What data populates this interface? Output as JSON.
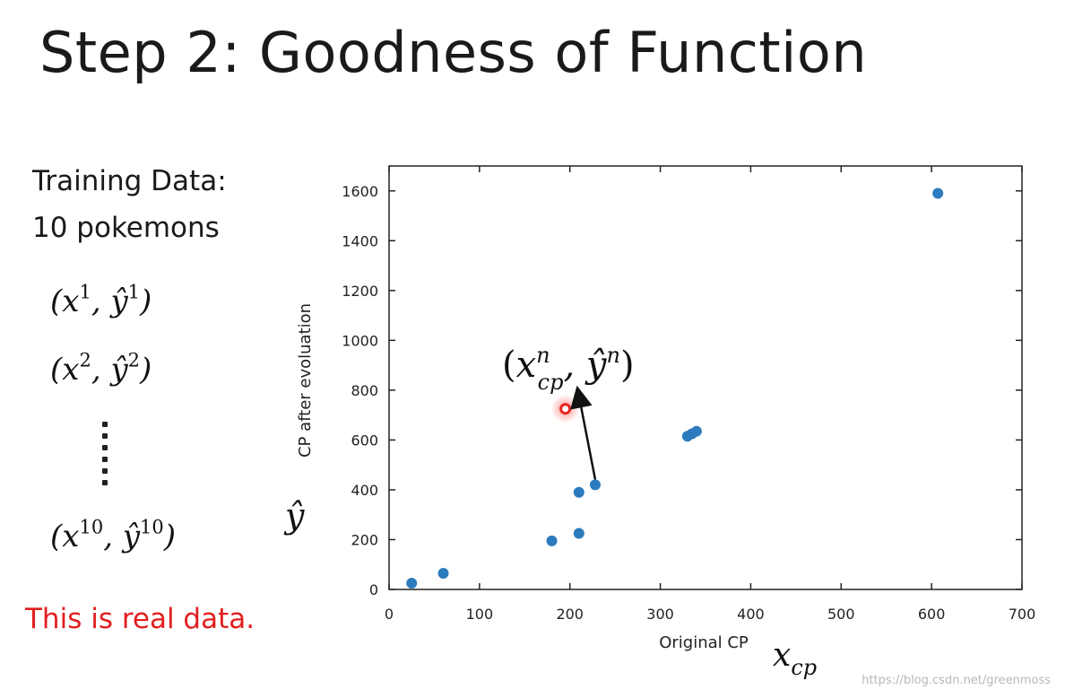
{
  "title": "Step 2: Goodness of Function",
  "training": {
    "line1": "Training Data:",
    "line2": "10 pokemons",
    "pairs": [
      {
        "x": "x",
        "sup": "1",
        "y": "ŷ"
      },
      {
        "x": "x",
        "sup": "2",
        "y": "ŷ"
      },
      {
        "x": "x",
        "sup": "10",
        "y": "ŷ"
      }
    ]
  },
  "note": "This is real data.",
  "watermark": "https://blog.csdn.net/greenmoss",
  "colors": {
    "point": "#2c7bbd",
    "highlight": "#e8231f",
    "note": "#e21f1f"
  },
  "chart_data": {
    "type": "scatter",
    "xlabel": "Original CP",
    "ylabel": "CP after evoluation",
    "xlim": [
      0,
      700
    ],
    "ylim": [
      0,
      1700
    ],
    "xticks": [
      0,
      100,
      200,
      300,
      400,
      500,
      600,
      700
    ],
    "yticks": [
      0,
      200,
      400,
      600,
      800,
      1000,
      1200,
      1400,
      1600
    ],
    "points": [
      {
        "x": 25,
        "y": 25
      },
      {
        "x": 60,
        "y": 65
      },
      {
        "x": 180,
        "y": 195
      },
      {
        "x": 210,
        "y": 225
      },
      {
        "x": 210,
        "y": 390
      },
      {
        "x": 228,
        "y": 420
      },
      {
        "x": 330,
        "y": 615
      },
      {
        "x": 335,
        "y": 625
      },
      {
        "x": 340,
        "y": 635
      },
      {
        "x": 607,
        "y": 1590
      }
    ],
    "highlight": {
      "x": 195,
      "y": 725
    },
    "annotation": {
      "base": "x",
      "sub": "cp",
      "sup": "n",
      "hat": "ŷ",
      "hat_sup": "n"
    },
    "x_math_label": {
      "base": "x",
      "sub": "cp"
    },
    "y_math_label": "ŷ"
  }
}
